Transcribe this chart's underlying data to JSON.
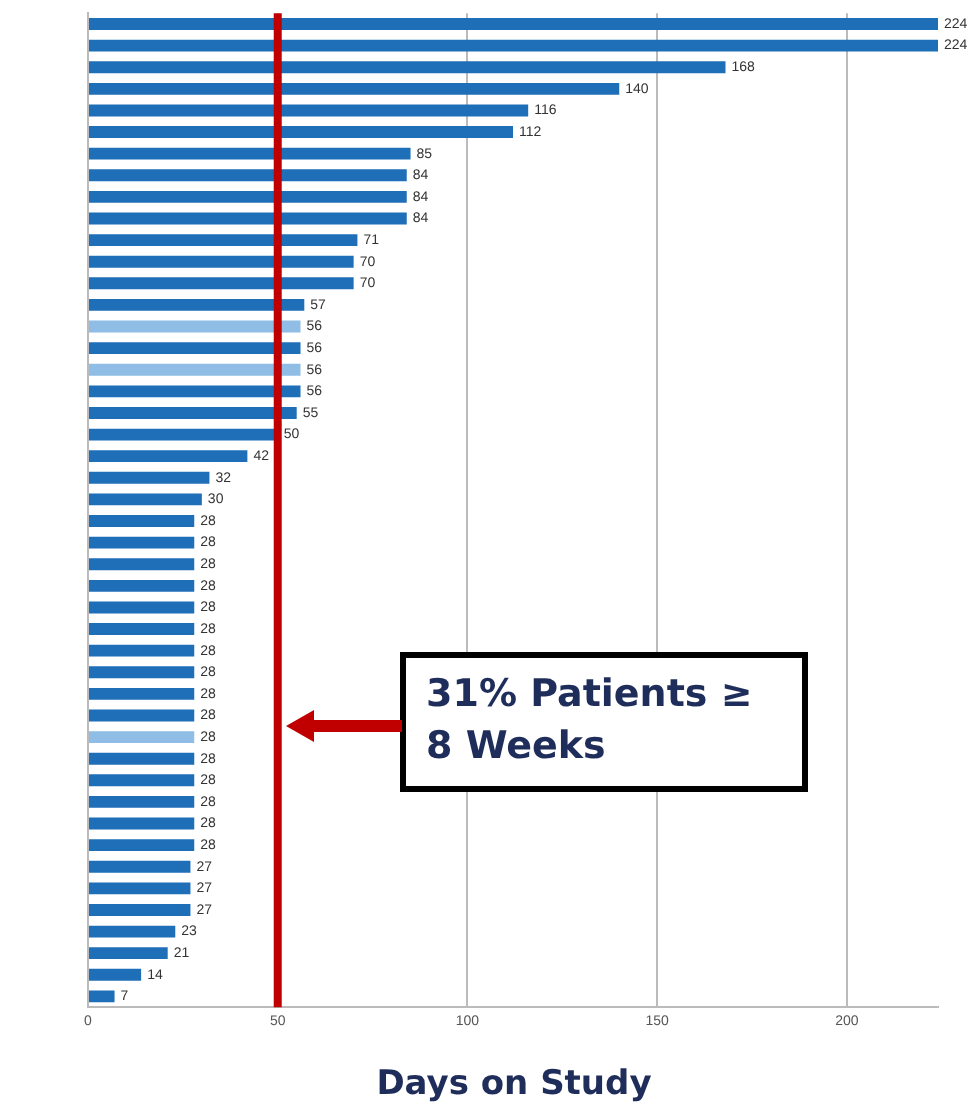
{
  "chart_data": {
    "type": "bar",
    "orientation": "horizontal",
    "xlabel": "Days on Study",
    "categories": [
      null,
      null,
      null,
      null,
      null,
      null,
      null,
      null,
      null,
      null,
      null,
      null,
      null,
      null,
      null,
      null,
      null,
      null,
      null,
      null,
      null,
      null,
      null,
      null,
      null,
      null,
      null,
      null,
      null,
      null,
      null,
      null,
      null,
      null,
      null,
      null,
      null,
      null,
      null,
      null,
      null,
      null,
      null,
      null,
      null,
      null
    ],
    "values": [
      224,
      224,
      168,
      140,
      116,
      112,
      85,
      84,
      84,
      84,
      71,
      70,
      70,
      57,
      56,
      56,
      56,
      56,
      55,
      50,
      42,
      32,
      30,
      28,
      28,
      28,
      28,
      28,
      28,
      28,
      28,
      28,
      28,
      28,
      28,
      28,
      28,
      28,
      28,
      27,
      27,
      27,
      23,
      21,
      14,
      7
    ],
    "colors": [
      "#1f6fb8",
      "#1f6fb8",
      "#1f6fb8",
      "#1f6fb8",
      "#1f6fb8",
      "#1f6fb8",
      "#1f6fb8",
      "#1f6fb8",
      "#1f6fb8",
      "#1f6fb8",
      "#1f6fb8",
      "#1f6fb8",
      "#1f6fb8",
      "#1f6fb8",
      "#8fbde6",
      "#1f6fb8",
      "#8fbde6",
      "#1f6fb8",
      "#1f6fb8",
      "#1f6fb8",
      "#1f6fb8",
      "#1f6fb8",
      "#1f6fb8",
      "#1f6fb8",
      "#1f6fb8",
      "#1f6fb8",
      "#1f6fb8",
      "#1f6fb8",
      "#1f6fb8",
      "#1f6fb8",
      "#1f6fb8",
      "#1f6fb8",
      "#1f6fb8",
      "#8fbde6",
      "#1f6fb8",
      "#1f6fb8",
      "#1f6fb8",
      "#1f6fb8",
      "#1f6fb8",
      "#1f6fb8",
      "#1f6fb8",
      "#1f6fb8",
      "#1f6fb8",
      "#1f6fb8",
      "#1f6fb8",
      "#1f6fb8"
    ],
    "xlim": [
      0,
      224
    ],
    "xticks": [
      0,
      50,
      100,
      150,
      200
    ],
    "grid": "x",
    "data_labels": true,
    "legend": false,
    "ref_lines": [
      {
        "axis": "x",
        "value": 50,
        "color": "#c00000"
      }
    ],
    "annotations": [
      "31% Patients ≥ 8 Weeks"
    ]
  }
}
